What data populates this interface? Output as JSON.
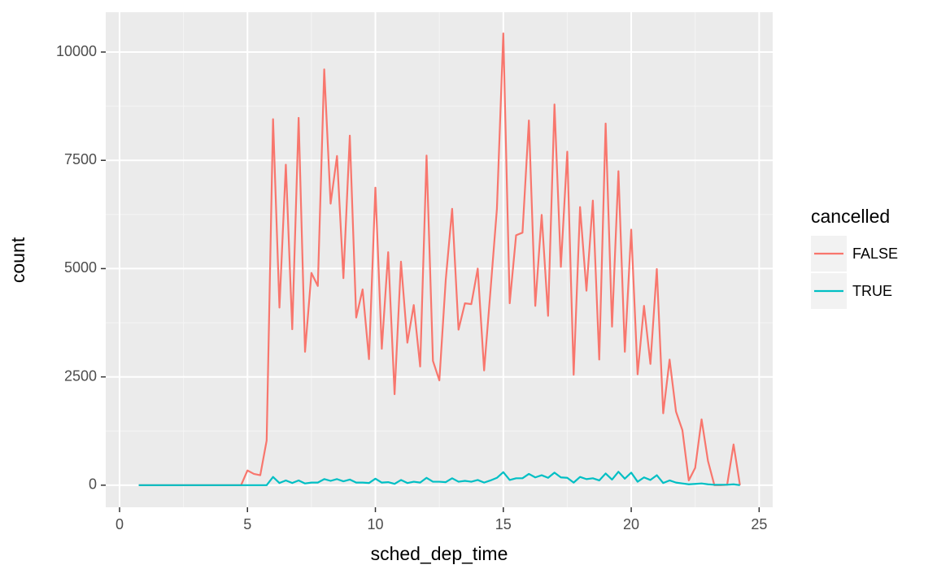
{
  "chart_data": {
    "type": "line",
    "x_label": "sched_dep_time",
    "y_label": "count",
    "legend_title": "cancelled",
    "x": [
      0.75,
      1,
      1.25,
      1.5,
      1.75,
      2,
      2.25,
      2.5,
      2.75,
      3,
      3.25,
      3.5,
      3.75,
      4,
      4.25,
      4.5,
      4.75,
      5,
      5.25,
      5.5,
      5.75,
      6,
      6.25,
      6.5,
      6.75,
      7,
      7.25,
      7.5,
      7.75,
      8,
      8.25,
      8.5,
      8.75,
      9,
      9.25,
      9.5,
      9.75,
      10,
      10.25,
      10.5,
      10.75,
      11,
      11.25,
      11.5,
      11.75,
      12,
      12.25,
      12.5,
      12.75,
      13,
      13.25,
      13.5,
      13.75,
      14,
      14.25,
      14.5,
      14.75,
      15,
      15.25,
      15.5,
      15.75,
      16,
      16.25,
      16.5,
      16.75,
      17,
      17.25,
      17.5,
      17.75,
      18,
      18.25,
      18.5,
      18.75,
      19,
      19.25,
      19.5,
      19.75,
      20,
      20.25,
      20.5,
      20.75,
      21,
      21.25,
      21.5,
      21.75,
      22,
      22.25,
      22.5,
      22.75,
      23,
      23.25,
      23.5,
      23.75,
      24,
      24.25
    ],
    "series": [
      {
        "name": "FALSE",
        "color": "#F8766D",
        "values": [
          0,
          0,
          0,
          0,
          0,
          0,
          0,
          0,
          0,
          0,
          0,
          0,
          0,
          0,
          0,
          0,
          0,
          340,
          260,
          230,
          1030,
          8450,
          4100,
          7400,
          3600,
          8480,
          3080,
          4900,
          4600,
          9600,
          6500,
          7600,
          4780,
          8070,
          3870,
          4520,
          2910,
          6870,
          3150,
          5380,
          2100,
          5160,
          3290,
          4160,
          2740,
          7610,
          2870,
          2420,
          4740,
          6380,
          3590,
          4200,
          4180,
          5000,
          2650,
          4500,
          6380,
          10430,
          4200,
          5770,
          5830,
          8420,
          4140,
          6240,
          3910,
          8790,
          5040,
          7700,
          2550,
          6420,
          4490,
          6570,
          2900,
          8350,
          3660,
          7250,
          3080,
          5900,
          2560,
          4140,
          2800,
          4990,
          1660,
          2900,
          1700,
          1270,
          110,
          400,
          1520,
          560,
          0,
          0,
          10,
          940,
          0
        ]
      },
      {
        "name": "TRUE",
        "color": "#00BFC4",
        "values": [
          0,
          0,
          0,
          0,
          0,
          0,
          0,
          0,
          0,
          0,
          0,
          0,
          0,
          0,
          0,
          0,
          0,
          0,
          0,
          0,
          0,
          190,
          50,
          110,
          50,
          110,
          40,
          60,
          60,
          140,
          100,
          140,
          90,
          130,
          60,
          60,
          50,
          150,
          60,
          70,
          30,
          120,
          50,
          80,
          60,
          170,
          80,
          80,
          70,
          160,
          80,
          100,
          80,
          120,
          60,
          110,
          170,
          300,
          120,
          160,
          160,
          260,
          180,
          230,
          170,
          290,
          180,
          170,
          60,
          190,
          140,
          160,
          110,
          270,
          130,
          310,
          150,
          290,
          80,
          180,
          120,
          230,
          50,
          110,
          60,
          40,
          20,
          30,
          40,
          20,
          10,
          10,
          10,
          20,
          0
        ]
      }
    ],
    "xlim": [
      -0.54,
      25.53
    ],
    "xticks": [
      0,
      5,
      10,
      15,
      20,
      25
    ],
    "ylim": [
      -510,
      10920
    ],
    "yticks": [
      0,
      2500,
      5000,
      7500,
      10000
    ],
    "grid": true,
    "legend": "right"
  }
}
